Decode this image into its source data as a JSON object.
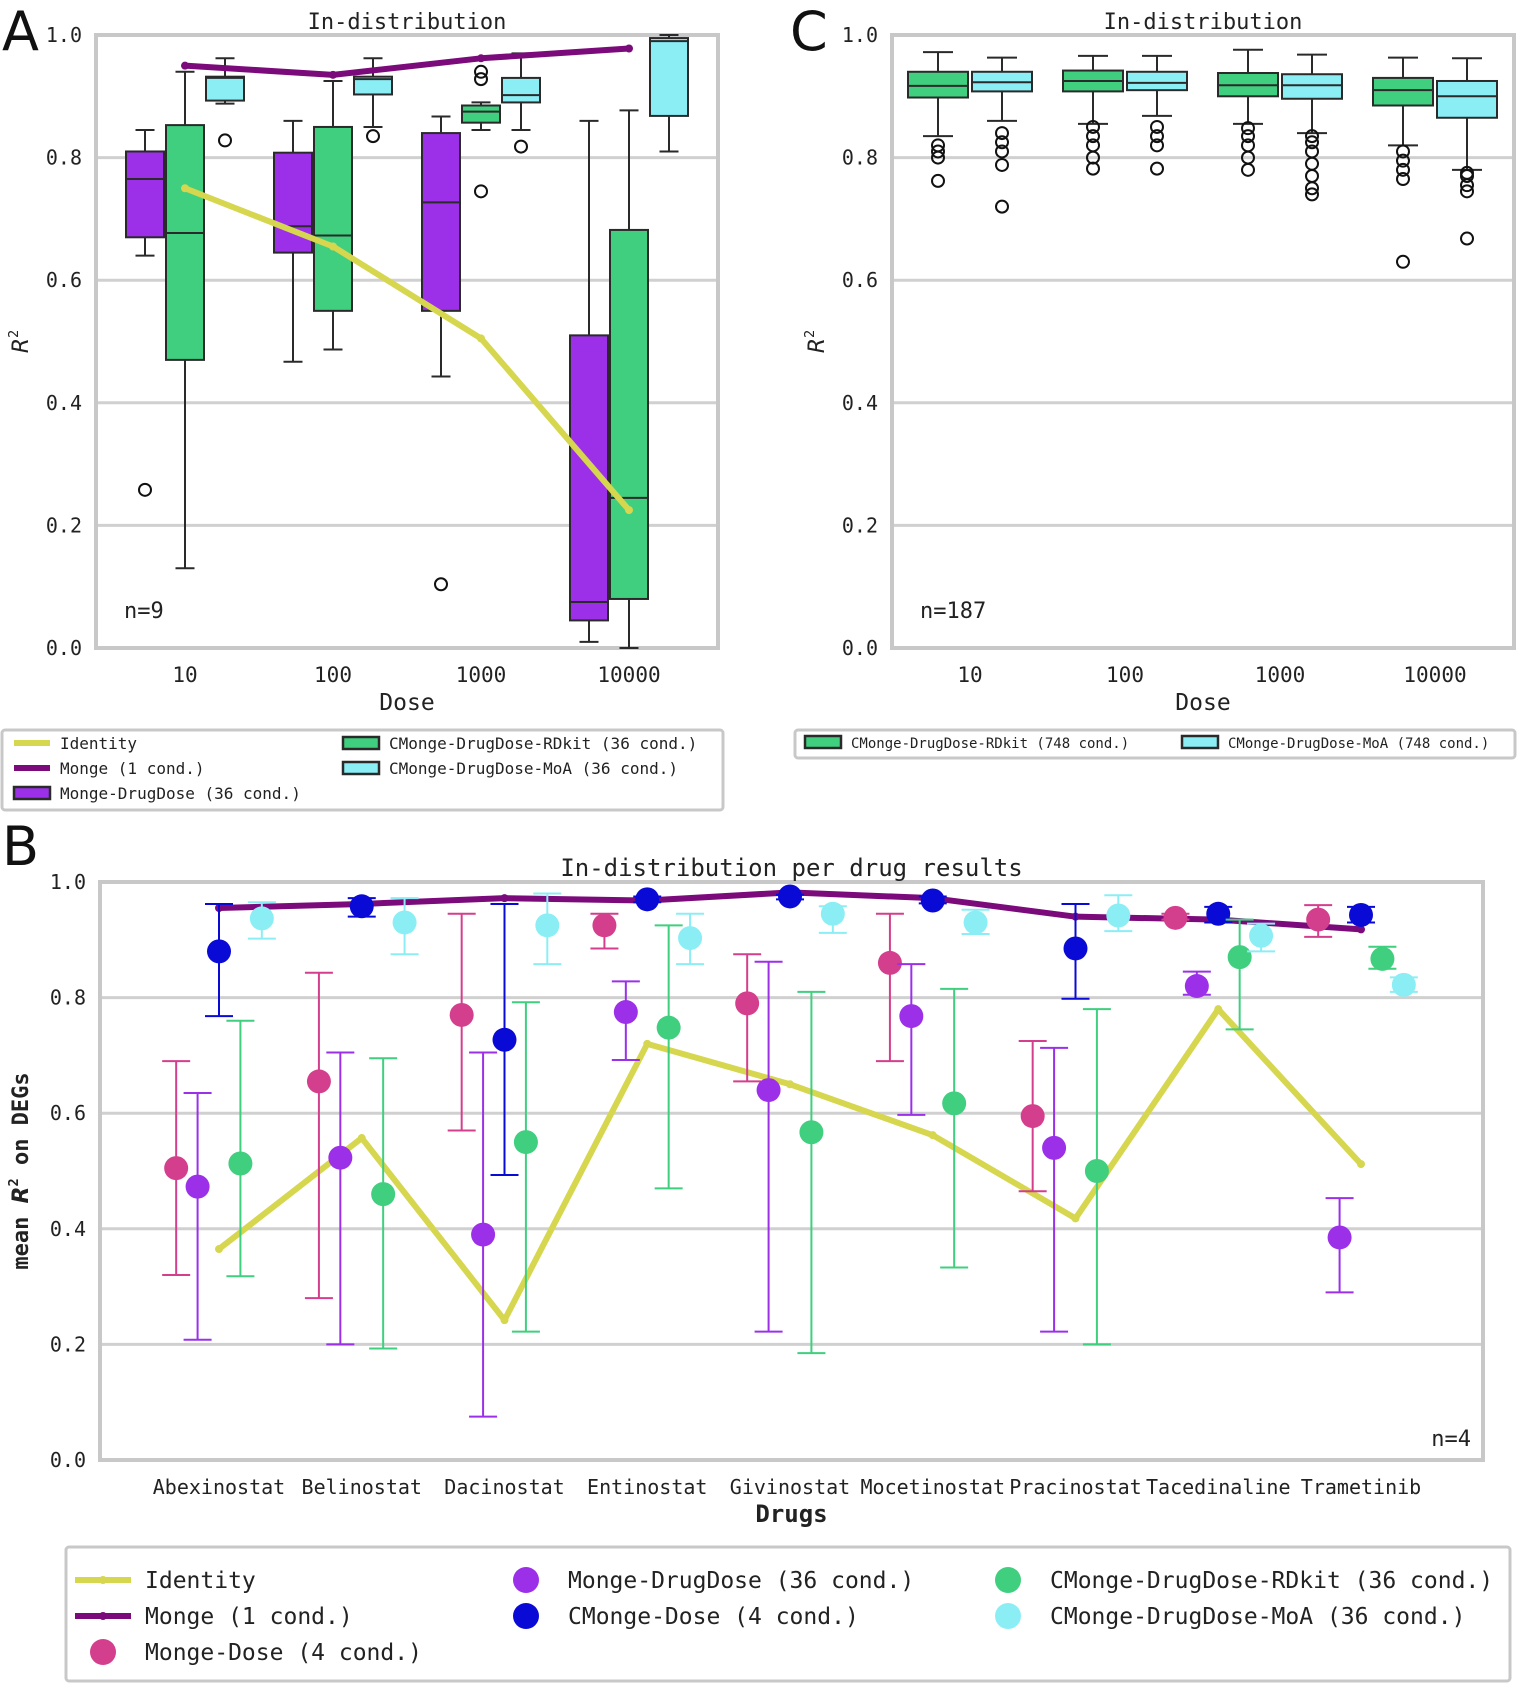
{
  "colors": {
    "identity": "#d6d64f",
    "monge": "#7b0a7b",
    "monge_drugdose": "#9b30e8",
    "monge_dose": "#d43f8d",
    "cmonge_dose": "#0a0ad6",
    "rdkit": "#3fcf7f",
    "moa": "#8beef5",
    "grid": "#d0d0d0",
    "frame": "#c8c8c8"
  },
  "chart_data": [
    {
      "panel": "A",
      "type": "box",
      "title": "In-distribution",
      "xlabel": "Dose",
      "ylabel": "R²",
      "ylim": [
        0,
        1
      ],
      "yticks": [
        "0.0",
        "0.2",
        "0.4",
        "0.6",
        "0.8",
        "1.0"
      ],
      "categories": [
        "10",
        "100",
        "1000",
        "10000"
      ],
      "annotation": "n=9",
      "boxes": [
        {
          "series": "Monge-DrugDose (36 cond.)",
          "cat": 0,
          "wlo": 0.64,
          "q1": 0.67,
          "med": 0.765,
          "q3": 0.81,
          "whi": 0.845,
          "fliers": [
            0.258
          ]
        },
        {
          "series": "CMonge-DrugDose-RDkit (36 cond.)",
          "cat": 0,
          "wlo": 0.13,
          "q1": 0.47,
          "med": 0.677,
          "q3": 0.853,
          "whi": 0.94,
          "fliers": []
        },
        {
          "series": "CMonge-DrugDose-MoA (36 cond.)",
          "cat": 0,
          "wlo": 0.888,
          "q1": 0.893,
          "med": 0.93,
          "q3": 0.932,
          "whi": 0.962,
          "fliers": [
            0.828
          ]
        },
        {
          "series": "Monge-DrugDose (36 cond.)",
          "cat": 1,
          "wlo": 0.467,
          "q1": 0.645,
          "med": 0.688,
          "q3": 0.808,
          "whi": 0.86,
          "fliers": []
        },
        {
          "series": "CMonge-DrugDose-RDkit (36 cond.)",
          "cat": 1,
          "wlo": 0.487,
          "q1": 0.55,
          "med": 0.673,
          "q3": 0.85,
          "whi": 0.925,
          "fliers": []
        },
        {
          "series": "CMonge-DrugDose-MoA (36 cond.)",
          "cat": 1,
          "wlo": 0.85,
          "q1": 0.903,
          "med": 0.928,
          "q3": 0.932,
          "whi": 0.962,
          "fliers": [
            0.835
          ]
        },
        {
          "series": "Monge-DrugDose (36 cond.)",
          "cat": 2,
          "wlo": 0.443,
          "q1": 0.55,
          "med": 0.727,
          "q3": 0.84,
          "whi": 0.867,
          "fliers": [
            0.104
          ]
        },
        {
          "series": "CMonge-DrugDose-RDkit (36 cond.)",
          "cat": 2,
          "wlo": 0.845,
          "q1": 0.857,
          "med": 0.875,
          "q3": 0.885,
          "whi": 0.89,
          "fliers": [
            0.745,
            0.928,
            0.94
          ]
        },
        {
          "series": "CMonge-DrugDose-MoA (36 cond.)",
          "cat": 2,
          "wlo": 0.845,
          "q1": 0.89,
          "med": 0.902,
          "q3": 0.93,
          "whi": 0.97,
          "fliers": [
            0.818
          ]
        },
        {
          "series": "Monge-DrugDose (36 cond.)",
          "cat": 3,
          "wlo": 0.01,
          "q1": 0.045,
          "med": 0.075,
          "q3": 0.51,
          "whi": 0.86,
          "fliers": []
        },
        {
          "series": "CMonge-DrugDose-RDkit (36 cond.)",
          "cat": 3,
          "wlo": 0.0,
          "q1": 0.08,
          "med": 0.245,
          "q3": 0.682,
          "whi": 0.877,
          "fliers": []
        },
        {
          "series": "CMonge-DrugDose-MoA (36 cond.)",
          "cat": 3,
          "wlo": 0.81,
          "q1": 0.868,
          "med": 0.99,
          "q3": 0.995,
          "whi": 1.0,
          "fliers": []
        }
      ],
      "lines": [
        {
          "name": "Identity",
          "values": [
            0.75,
            0.655,
            0.505,
            0.225
          ]
        },
        {
          "name": "Monge (1 cond.)",
          "values": [
            0.95,
            0.935,
            0.962,
            0.978
          ]
        }
      ],
      "legend": [
        {
          "label": "Identity",
          "kind": "line",
          "color": "#d6d64f"
        },
        {
          "label": "Monge (1 cond.)",
          "kind": "line",
          "color": "#7b0a7b"
        },
        {
          "label": "Monge-DrugDose (36 cond.)",
          "kind": "patch",
          "color": "#9b30e8"
        },
        {
          "label": "CMonge-DrugDose-RDkit (36 cond.)",
          "kind": "patch",
          "color": "#3fcf7f"
        },
        {
          "label": "CMonge-DrugDose-MoA (36 cond.)",
          "kind": "patch",
          "color": "#8beef5"
        }
      ]
    },
    {
      "panel": "C",
      "type": "box",
      "title": "In-distribution",
      "xlabel": "Dose",
      "ylabel": "R²",
      "ylim": [
        0,
        1
      ],
      "yticks": [
        "0.0",
        "0.2",
        "0.4",
        "0.6",
        "0.8",
        "1.0"
      ],
      "categories": [
        "10",
        "100",
        "1000",
        "10000"
      ],
      "annotation": "n=187",
      "boxes": [
        {
          "series": "CMonge-DrugDose-RDkit (748 cond.)",
          "cat": 0,
          "wlo": 0.835,
          "q1": 0.898,
          "med": 0.917,
          "q3": 0.94,
          "whi": 0.972,
          "fliers": [
            0.762,
            0.8,
            0.81,
            0.82
          ]
        },
        {
          "series": "CMonge-DrugDose-MoA (748 cond.)",
          "cat": 0,
          "wlo": 0.86,
          "q1": 0.908,
          "med": 0.923,
          "q3": 0.94,
          "whi": 0.963,
          "fliers": [
            0.72,
            0.788,
            0.81,
            0.825,
            0.84
          ]
        },
        {
          "series": "CMonge-DrugDose-RDkit (748 cond.)",
          "cat": 1,
          "wlo": 0.855,
          "q1": 0.908,
          "med": 0.925,
          "q3": 0.942,
          "whi": 0.966,
          "fliers": [
            0.782,
            0.8,
            0.82,
            0.835,
            0.85
          ]
        },
        {
          "series": "CMonge-DrugDose-MoA (748 cond.)",
          "cat": 1,
          "wlo": 0.868,
          "q1": 0.91,
          "med": 0.922,
          "q3": 0.94,
          "whi": 0.966,
          "fliers": [
            0.782,
            0.82,
            0.835,
            0.85
          ]
        },
        {
          "series": "CMonge-DrugDose-RDkit (748 cond.)",
          "cat": 2,
          "wlo": 0.855,
          "q1": 0.9,
          "med": 0.918,
          "q3": 0.938,
          "whi": 0.976,
          "fliers": [
            0.78,
            0.8,
            0.82,
            0.835,
            0.848
          ]
        },
        {
          "series": "CMonge-DrugDose-MoA (748 cond.)",
          "cat": 2,
          "wlo": 0.84,
          "q1": 0.896,
          "med": 0.918,
          "q3": 0.936,
          "whi": 0.968,
          "fliers": [
            0.74,
            0.75,
            0.77,
            0.79,
            0.81,
            0.825,
            0.835
          ]
        },
        {
          "series": "CMonge-DrugDose-RDkit (748 cond.)",
          "cat": 3,
          "wlo": 0.82,
          "q1": 0.885,
          "med": 0.91,
          "q3": 0.93,
          "whi": 0.963,
          "fliers": [
            0.63,
            0.765,
            0.78,
            0.795,
            0.81
          ]
        },
        {
          "series": "CMonge-DrugDose-MoA (748 cond.)",
          "cat": 3,
          "wlo": 0.78,
          "q1": 0.865,
          "med": 0.9,
          "q3": 0.925,
          "whi": 0.962,
          "fliers": [
            0.668,
            0.745,
            0.755,
            0.77,
            0.775
          ]
        }
      ],
      "legend": [
        {
          "label": "CMonge-DrugDose-RDkit (748 cond.)",
          "kind": "patch",
          "color": "#3fcf7f"
        },
        {
          "label": "CMonge-DrugDose-MoA (748 cond.)",
          "kind": "patch",
          "color": "#8beef5"
        }
      ]
    },
    {
      "panel": "B",
      "type": "errorbar",
      "title": "In-distribution per drug results",
      "xlabel": "Drugs",
      "ylabel": "mean R² on DEGs",
      "ylim": [
        0,
        1
      ],
      "yticks": [
        "0.0",
        "0.2",
        "0.4",
        "0.6",
        "0.8",
        "1.0"
      ],
      "categories": [
        "Abexinostat",
        "Belinostat",
        "Dacinostat",
        "Entinostat",
        "Givinostat",
        "Mocetinostat",
        "Pracinostat",
        "Tacedinaline",
        "Trametinib"
      ],
      "annotation": "n=4",
      "lines": [
        {
          "name": "Identity",
          "values": [
            0.365,
            0.557,
            0.242,
            0.72,
            0.65,
            0.562,
            0.418,
            0.78,
            0.512
          ]
        },
        {
          "name": "Monge (1 cond.)",
          "values": [
            0.955,
            0.962,
            0.972,
            0.968,
            0.982,
            0.972,
            0.94,
            0.935,
            0.918
          ]
        }
      ],
      "series": [
        {
          "name": "Monge-Dose (4 cond.)",
          "offset": -0.3,
          "points": [
            {
              "mean": 0.505,
              "lo": 0.32,
              "hi": 0.69
            },
            {
              "mean": 0.655,
              "lo": 0.28,
              "hi": 0.843
            },
            {
              "mean": 0.77,
              "lo": 0.57,
              "hi": 0.945
            },
            {
              "mean": 0.925,
              "lo": 0.885,
              "hi": 0.945
            },
            {
              "mean": 0.79,
              "lo": 0.655,
              "hi": 0.875
            },
            {
              "mean": 0.86,
              "lo": 0.69,
              "hi": 0.945
            },
            {
              "mean": 0.595,
              "lo": 0.465,
              "hi": 0.725
            },
            {
              "mean": 0.938,
              "lo": 0.935,
              "hi": 0.945
            },
            {
              "mean": 0.935,
              "lo": 0.905,
              "hi": 0.96
            }
          ]
        },
        {
          "name": "Monge-DrugDose (36 cond.)",
          "offset": -0.15,
          "points": [
            {
              "mean": 0.473,
              "lo": 0.208,
              "hi": 0.635
            },
            {
              "mean": 0.523,
              "lo": 0.2,
              "hi": 0.705
            },
            {
              "mean": 0.39,
              "lo": 0.075,
              "hi": 0.705
            },
            {
              "mean": 0.775,
              "lo": 0.692,
              "hi": 0.828
            },
            {
              "mean": 0.64,
              "lo": 0.222,
              "hi": 0.862
            },
            {
              "mean": 0.768,
              "lo": 0.597,
              "hi": 0.858
            },
            {
              "mean": 0.54,
              "lo": 0.222,
              "hi": 0.713
            },
            {
              "mean": 0.82,
              "lo": 0.805,
              "hi": 0.845
            },
            {
              "mean": 0.385,
              "lo": 0.29,
              "hi": 0.453
            }
          ]
        },
        {
          "name": "CMonge-Dose (4 cond.)",
          "offset": 0.0,
          "points": [
            {
              "mean": 0.88,
              "lo": 0.768,
              "hi": 0.962
            },
            {
              "mean": 0.958,
              "lo": 0.94,
              "hi": 0.972
            },
            {
              "mean": 0.727,
              "lo": 0.493,
              "hi": 0.962
            },
            {
              "mean": 0.97,
              "lo": 0.965,
              "hi": 0.975
            },
            {
              "mean": 0.975,
              "lo": 0.97,
              "hi": 0.978
            },
            {
              "mean": 0.968,
              "lo": 0.963,
              "hi": 0.975
            },
            {
              "mean": 0.885,
              "lo": 0.798,
              "hi": 0.962
            },
            {
              "mean": 0.945,
              "lo": 0.93,
              "hi": 0.957
            },
            {
              "mean": 0.943,
              "lo": 0.93,
              "hi": 0.957
            }
          ]
        },
        {
          "name": "CMonge-DrugDose-RDkit (36 cond.)",
          "offset": 0.15,
          "points": [
            {
              "mean": 0.513,
              "lo": 0.318,
              "hi": 0.76
            },
            {
              "mean": 0.46,
              "lo": 0.193,
              "hi": 0.695
            },
            {
              "mean": 0.55,
              "lo": 0.222,
              "hi": 0.792
            },
            {
              "mean": 0.748,
              "lo": 0.47,
              "hi": 0.925
            },
            {
              "mean": 0.567,
              "lo": 0.185,
              "hi": 0.81
            },
            {
              "mean": 0.617,
              "lo": 0.333,
              "hi": 0.815
            },
            {
              "mean": 0.5,
              "lo": 0.2,
              "hi": 0.78
            },
            {
              "mean": 0.87,
              "lo": 0.745,
              "hi": 0.935
            },
            {
              "mean": 0.867,
              "lo": 0.85,
              "hi": 0.888
            }
          ]
        },
        {
          "name": "CMonge-DrugDose-MoA (36 cond.)",
          "offset": 0.3,
          "points": [
            {
              "mean": 0.937,
              "lo": 0.902,
              "hi": 0.965
            },
            {
              "mean": 0.93,
              "lo": 0.875,
              "hi": 0.972
            },
            {
              "mean": 0.925,
              "lo": 0.858,
              "hi": 0.98
            },
            {
              "mean": 0.903,
              "lo": 0.858,
              "hi": 0.945
            },
            {
              "mean": 0.945,
              "lo": 0.912,
              "hi": 0.958
            },
            {
              "mean": 0.93,
              "lo": 0.91,
              "hi": 0.952
            },
            {
              "mean": 0.942,
              "lo": 0.915,
              "hi": 0.977
            },
            {
              "mean": 0.907,
              "lo": 0.88,
              "hi": 0.928
            },
            {
              "mean": 0.822,
              "lo": 0.81,
              "hi": 0.835
            }
          ]
        }
      ],
      "legend": [
        {
          "label": "Identity",
          "kind": "line",
          "color": "#d6d64f"
        },
        {
          "label": "Monge (1 cond.)",
          "kind": "line",
          "color": "#7b0a7b"
        },
        {
          "label": "Monge-Dose (4 cond.)",
          "kind": "dot",
          "color": "#d43f8d"
        },
        {
          "label": "Monge-DrugDose (36 cond.)",
          "kind": "dot",
          "color": "#9b30e8"
        },
        {
          "label": "CMonge-Dose (4 cond.)",
          "kind": "dot",
          "color": "#0a0ad6"
        },
        {
          "label": "CMonge-DrugDose-RDkit (36 cond.)",
          "kind": "dot",
          "color": "#3fcf7f"
        },
        {
          "label": "CMonge-DrugDose-MoA (36 cond.)",
          "kind": "dot",
          "color": "#8beef5"
        }
      ]
    }
  ],
  "panel_labels": [
    "A",
    "C",
    "B"
  ]
}
